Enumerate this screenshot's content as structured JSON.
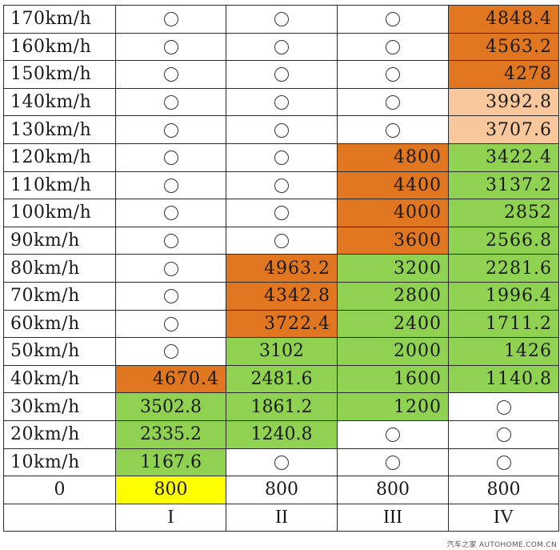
{
  "colors": {
    "dark_orange": "#e0761f",
    "light_orange": "#f8c79b",
    "green": "#8fd150",
    "yellow": "#ffff00",
    "white": "#ffffff"
  },
  "rows": [
    {
      "speed": "170km/h",
      "cells": [
        {
          "t": "circle"
        },
        {
          "t": "circle"
        },
        {
          "t": "circle"
        },
        {
          "v": "4848.4",
          "c": "dark_orange"
        }
      ]
    },
    {
      "speed": "160km/h",
      "cells": [
        {
          "t": "circle"
        },
        {
          "t": "circle"
        },
        {
          "t": "circle"
        },
        {
          "v": "4563.2",
          "c": "dark_orange"
        }
      ]
    },
    {
      "speed": "150km/h",
      "cells": [
        {
          "t": "circle"
        },
        {
          "t": "circle"
        },
        {
          "t": "circle"
        },
        {
          "v": "4278",
          "c": "dark_orange"
        }
      ]
    },
    {
      "speed": "140km/h",
      "cells": [
        {
          "t": "circle"
        },
        {
          "t": "circle"
        },
        {
          "t": "circle"
        },
        {
          "v": "3992.8",
          "c": "light_orange"
        }
      ]
    },
    {
      "speed": "130km/h",
      "cells": [
        {
          "t": "circle"
        },
        {
          "t": "circle"
        },
        {
          "t": "circle"
        },
        {
          "v": "3707.6",
          "c": "light_orange"
        }
      ]
    },
    {
      "speed": "120km/h",
      "cells": [
        {
          "t": "circle"
        },
        {
          "t": "circle"
        },
        {
          "v": "4800",
          "c": "dark_orange"
        },
        {
          "v": "3422.4",
          "c": "green"
        }
      ]
    },
    {
      "speed": "110km/h",
      "cells": [
        {
          "t": "circle"
        },
        {
          "t": "circle"
        },
        {
          "v": "4400",
          "c": "dark_orange"
        },
        {
          "v": "3137.2",
          "c": "green"
        }
      ]
    },
    {
      "speed": "100km/h",
      "cells": [
        {
          "t": "circle"
        },
        {
          "t": "circle"
        },
        {
          "v": "4000",
          "c": "dark_orange"
        },
        {
          "v": "2852",
          "c": "green"
        }
      ]
    },
    {
      "speed": "90km/h",
      "cells": [
        {
          "t": "circle"
        },
        {
          "t": "circle"
        },
        {
          "v": "3600",
          "c": "dark_orange"
        },
        {
          "v": "2566.8",
          "c": "green"
        }
      ]
    },
    {
      "speed": "80km/h",
      "cells": [
        {
          "t": "circle"
        },
        {
          "v": "4963.2",
          "c": "dark_orange"
        },
        {
          "v": "3200",
          "c": "green"
        },
        {
          "v": "2281.6",
          "c": "green"
        }
      ]
    },
    {
      "speed": "70km/h",
      "cells": [
        {
          "t": "circle"
        },
        {
          "v": "4342.8",
          "c": "dark_orange"
        },
        {
          "v": "2800",
          "c": "green"
        },
        {
          "v": "1996.4",
          "c": "green"
        }
      ]
    },
    {
      "speed": "60km/h",
      "cells": [
        {
          "t": "circle"
        },
        {
          "v": "3722.4",
          "c": "dark_orange"
        },
        {
          "v": "2400",
          "c": "green"
        },
        {
          "v": "1711.2",
          "c": "green"
        }
      ]
    },
    {
      "speed": "50km/h",
      "cells": [
        {
          "t": "circle"
        },
        {
          "v": "3102",
          "c": "green",
          "a": "center"
        },
        {
          "v": "2000",
          "c": "green"
        },
        {
          "v": "1426",
          "c": "green"
        }
      ]
    },
    {
      "speed": "40km/h",
      "cells": [
        {
          "v": "4670.4",
          "c": "dark_orange"
        },
        {
          "v": "2481.6",
          "c": "green",
          "a": "center"
        },
        {
          "v": "1600",
          "c": "green"
        },
        {
          "v": "1140.8",
          "c": "green"
        }
      ]
    },
    {
      "speed": "30km/h",
      "cells": [
        {
          "v": "3502.8",
          "c": "green",
          "a": "center"
        },
        {
          "v": "1861.2",
          "c": "green",
          "a": "center"
        },
        {
          "v": "1200",
          "c": "green"
        },
        {
          "t": "circle"
        }
      ]
    },
    {
      "speed": "20km/h",
      "cells": [
        {
          "v": "2335.2",
          "c": "green",
          "a": "center"
        },
        {
          "v": "1240.8",
          "c": "green",
          "a": "center"
        },
        {
          "t": "circle"
        },
        {
          "t": "circle"
        }
      ]
    },
    {
      "speed": "10km/h",
      "cells": [
        {
          "v": "1167.6",
          "c": "green",
          "a": "center"
        },
        {
          "t": "circle"
        },
        {
          "t": "circle"
        },
        {
          "t": "circle"
        }
      ]
    },
    {
      "speed": "0",
      "speed_align": "center",
      "cells": [
        {
          "v": "800",
          "c": "yellow",
          "a": "center"
        },
        {
          "v": "800",
          "a": "center"
        },
        {
          "v": "800",
          "a": "center"
        },
        {
          "v": "800",
          "a": "center"
        }
      ]
    }
  ],
  "gears": [
    "",
    "I",
    "II",
    "III",
    "IV"
  ],
  "watermark": "汽车之家 AUTOHOME.COM.CN"
}
